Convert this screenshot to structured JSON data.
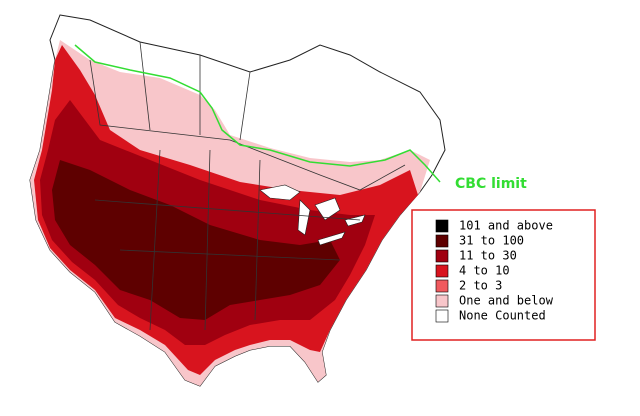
{
  "map": {
    "annotation": "CBC limit",
    "annotation_color": "#33dd33",
    "legend": [
      {
        "label": "101 and above",
        "color": "#000000"
      },
      {
        "label": "31 to 100",
        "color": "#5e0000"
      },
      {
        "label": "11 to 30",
        "color": "#a00010"
      },
      {
        "label": "4 to 10",
        "color": "#d8141e"
      },
      {
        "label": "2 to 3",
        "color": "#f05a5e"
      },
      {
        "label": "One and below",
        "color": "#f8c6ca"
      },
      {
        "label": "None Counted",
        "color": "#ffffff"
      }
    ]
  }
}
